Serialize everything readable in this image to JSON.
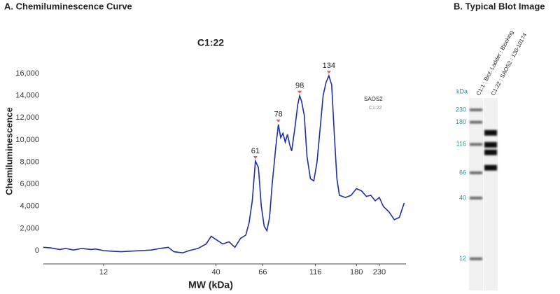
{
  "chart_data": [
    {
      "type": "line",
      "heading": "A. Chemiluminescence Curve",
      "title": "C1:22",
      "xlabel": "MW (kDa)",
      "ylabel": "Chemiluminescence",
      "log_x": true,
      "xlim": [
        6.3,
        306
      ],
      "xticks": [
        12,
        40,
        66,
        116,
        180,
        230
      ],
      "ylim": [
        -1200,
        17900
      ],
      "yticks": [
        0,
        {
          "value": 2000,
          "label": "2,000"
        },
        {
          "value": 4000,
          "label": "4,000"
        },
        {
          "value": 6000,
          "label": "6,000"
        },
        {
          "value": 8000,
          "label": "8,000"
        },
        {
          "value": 10000,
          "label": "10,000"
        },
        {
          "value": 12000,
          "label": "12,000"
        },
        {
          "value": 14000,
          "label": "14,000"
        },
        {
          "value": 16000,
          "label": "16,000"
        }
      ],
      "x": [
        6.3,
        6.8,
        7.5,
        8,
        8.7,
        9.5,
        10.5,
        11,
        12,
        13,
        14.5,
        16,
        18,
        20,
        22,
        24,
        25.5,
        28,
        30,
        33,
        36,
        38,
        40,
        43,
        46,
        49,
        52,
        55,
        57,
        59,
        61,
        63,
        65,
        67,
        69,
        71,
        73,
        76,
        78,
        80,
        82,
        84,
        86,
        88,
        90,
        93,
        96,
        98,
        100,
        103,
        106,
        110,
        114,
        118,
        122,
        126,
        130,
        134,
        138,
        142,
        146,
        150,
        160,
        170,
        180,
        190,
        200,
        210,
        220,
        230,
        240,
        255,
        270,
        285,
        300
      ],
      "series": [
        {
          "name": "SAOS2",
          "color": "#1f2fa0",
          "values": [
            300,
            250,
            100,
            200,
            50,
            200,
            100,
            150,
            0,
            -50,
            -100,
            -50,
            0,
            50,
            200,
            300,
            -100,
            -200,
            0,
            200,
            600,
            1300,
            1000,
            600,
            800,
            300,
            1100,
            1400,
            2500,
            4500,
            8100,
            7500,
            4000,
            2200,
            1800,
            3000,
            6000,
            9500,
            11400,
            10200,
            10600,
            9800,
            10500,
            9600,
            9000,
            11000,
            13200,
            14000,
            13500,
            12200,
            8500,
            6500,
            6300,
            8000,
            11000,
            14000,
            15200,
            15800,
            15000,
            10500,
            6500,
            5000,
            4800,
            5000,
            5600,
            5400,
            4900,
            5000,
            4500,
            4800,
            4000,
            3500,
            2800,
            3000,
            4300
          ]
        }
      ],
      "legend_note": "C1:22",
      "peaks": [
        61,
        78,
        98,
        134
      ],
      "peak_color": "#e05a5a"
    },
    {
      "type": "blot",
      "heading": "B.   Typical Blot Image",
      "unit": "kDa",
      "log_y": true,
      "ylim": [
        6.4,
        291
      ],
      "yticks": [
        230,
        180,
        116,
        66,
        40,
        12
      ],
      "lanes": [
        {
          "name": "C1:1 : Biot. Ladder : Blocking",
          "color": "#6a6a6a",
          "bands": [
            230,
            180,
            116,
            66,
            40,
            12
          ]
        },
        {
          "name": "C1:22 : SAOS2 : 130-10174",
          "color": "#111111",
          "bands": [
            146,
            115,
            99,
            73
          ]
        }
      ]
    }
  ]
}
